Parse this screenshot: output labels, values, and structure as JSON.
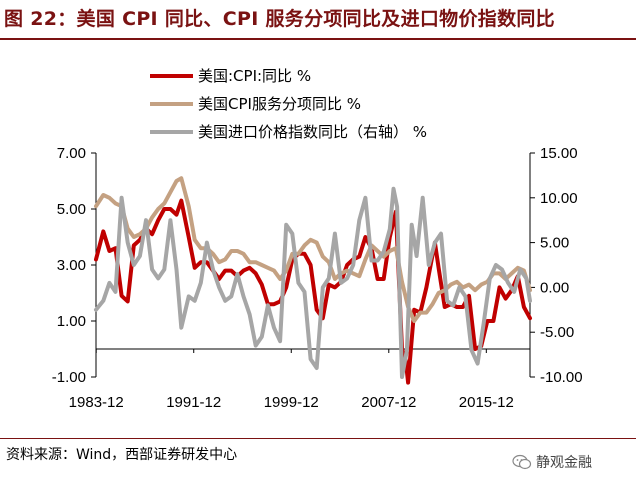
{
  "figure": {
    "title": "图 22：美国 CPI 同比、CPI 服务分项同比及进口物价指数同比",
    "source": "资料来源：Wind，西部证券研发中心",
    "watermark": "静观金融",
    "watermark_icon": "wechat-icon"
  },
  "chart_data": {
    "type": "line",
    "legend": [
      {
        "name": "美国:CPI:同比 %",
        "color": "#c00000"
      },
      {
        "name": "美国CPI服务分项同比 %",
        "color": "#c4a182"
      },
      {
        "name": "美国进口价格指数同比（右轴） %",
        "color": "#a6a6a6"
      }
    ],
    "x_ticks": [
      "1983-12",
      "1991-12",
      "1999-12",
      "2007-12",
      "2015-12"
    ],
    "y_left": {
      "min": -1,
      "max": 7,
      "ticks": [
        "7.00",
        "5.00",
        "3.00",
        "1.00",
        "-1.00"
      ]
    },
    "y_right": {
      "min": -10,
      "max": 15,
      "ticks": [
        "15.00",
        "10.00",
        "5.00",
        "0.00",
        "-5.00",
        "-10.00"
      ]
    },
    "x_range": [
      1983.9,
      2019.5
    ],
    "series": [
      {
        "name": "美国:CPI:同比 %",
        "axis": "left",
        "color": "#c00000",
        "x": [
          1983.9,
          1984.5,
          1985.0,
          1985.5,
          1986.0,
          1986.5,
          1987.0,
          1987.5,
          1988.0,
          1988.5,
          1989.0,
          1989.5,
          1990.0,
          1990.5,
          1990.9,
          1991.5,
          1992.0,
          1992.5,
          1993.0,
          1993.5,
          1994.0,
          1994.5,
          1995.0,
          1995.5,
          1996.0,
          1996.5,
          1997.0,
          1997.5,
          1998.0,
          1998.5,
          1999.0,
          1999.5,
          2000.0,
          2000.5,
          2001.0,
          2001.5,
          2002.0,
          2002.5,
          2003.0,
          2003.5,
          2004.0,
          2004.5,
          2005.0,
          2005.5,
          2006.0,
          2006.5,
          2007.0,
          2007.5,
          2008.0,
          2008.5,
          2009.0,
          2009.3,
          2009.5,
          2010.0,
          2010.5,
          2011.0,
          2011.7,
          2012.0,
          2012.5,
          2013.0,
          2013.5,
          2014.0,
          2014.5,
          2015.0,
          2015.5,
          2016.0,
          2016.5,
          2017.0,
          2017.5,
          2018.0,
          2018.5,
          2019.0,
          2019.5
        ],
        "values": [
          3.2,
          4.2,
          3.5,
          3.6,
          1.9,
          1.7,
          3.7,
          3.9,
          4.3,
          4.1,
          4.6,
          5.0,
          5.0,
          4.8,
          5.3,
          4.0,
          2.9,
          3.1,
          3.1,
          2.8,
          2.5,
          2.8,
          2.8,
          2.6,
          2.8,
          2.9,
          2.7,
          2.3,
          1.6,
          1.6,
          1.7,
          2.2,
          3.2,
          3.4,
          3.4,
          3.0,
          1.4,
          1.1,
          2.3,
          2.2,
          2.4,
          3.0,
          3.2,
          3.3,
          4.0,
          3.6,
          2.5,
          2.5,
          4.0,
          4.9,
          0.0,
          -0.4,
          -1.2,
          1.4,
          1.3,
          2.2,
          3.8,
          2.9,
          1.5,
          1.6,
          1.5,
          1.5,
          1.9,
          0.0,
          0.1,
          1.0,
          1.0,
          2.2,
          1.8,
          2.1,
          2.6,
          1.5,
          1.1
        ]
      },
      {
        "name": "美国CPI服务分项同比 %",
        "axis": "left",
        "color": "#c4a182",
        "x": [
          1983.9,
          1984.5,
          1985.0,
          1985.5,
          1986.0,
          1986.5,
          1987.0,
          1987.5,
          1988.0,
          1988.5,
          1989.0,
          1989.5,
          1990.0,
          1990.5,
          1990.9,
          1991.5,
          1992.0,
          1992.5,
          1993.0,
          1993.5,
          1994.0,
          1994.5,
          1995.0,
          1995.5,
          1996.0,
          1996.5,
          1997.0,
          1997.5,
          1998.0,
          1998.5,
          1999.0,
          1999.5,
          2000.0,
          2000.5,
          2001.0,
          2001.5,
          2002.0,
          2002.5,
          2003.0,
          2003.5,
          2004.0,
          2004.5,
          2005.0,
          2005.5,
          2006.0,
          2006.5,
          2007.0,
          2007.5,
          2008.0,
          2008.5,
          2009.0,
          2009.5,
          2010.0,
          2010.5,
          2011.0,
          2011.5,
          2012.0,
          2012.5,
          2013.0,
          2013.5,
          2014.0,
          2014.5,
          2015.0,
          2015.5,
          2016.0,
          2016.5,
          2017.0,
          2017.5,
          2018.0,
          2018.5,
          2019.0,
          2019.5
        ],
        "values": [
          5.1,
          5.5,
          5.4,
          5.2,
          5.1,
          4.3,
          4.0,
          4.1,
          4.3,
          4.7,
          5.0,
          5.2,
          5.6,
          6.0,
          6.1,
          5.1,
          3.9,
          3.6,
          3.6,
          3.4,
          3.1,
          3.2,
          3.5,
          3.5,
          3.4,
          3.1,
          3.1,
          3.0,
          2.9,
          2.8,
          2.5,
          2.8,
          3.4,
          3.4,
          3.7,
          3.9,
          3.8,
          3.3,
          3.1,
          2.5,
          2.7,
          2.8,
          2.7,
          2.6,
          3.2,
          3.7,
          3.5,
          3.3,
          3.5,
          3.6,
          2.4,
          1.5,
          1.0,
          1.3,
          1.3,
          1.6,
          2.0,
          2.1,
          2.3,
          2.4,
          2.2,
          2.3,
          2.1,
          2.3,
          2.4,
          2.7,
          2.7,
          2.5,
          2.7,
          2.9,
          2.8,
          2.1
        ]
      },
      {
        "name": "美国进口价格指数同比（右轴） %",
        "axis": "right",
        "color": "#a6a6a6",
        "x": [
          1983.9,
          1984.5,
          1985.0,
          1985.5,
          1986.0,
          1986.5,
          1987.0,
          1987.5,
          1988.0,
          1988.5,
          1989.0,
          1989.5,
          1990.0,
          1990.5,
          1990.9,
          1991.5,
          1992.0,
          1992.5,
          1993.0,
          1993.5,
          1994.0,
          1994.5,
          1995.0,
          1995.5,
          1996.0,
          1996.5,
          1997.0,
          1997.5,
          1998.0,
          1998.5,
          1999.0,
          1999.5,
          2000.0,
          2000.5,
          2001.0,
          2001.5,
          2002.0,
          2002.5,
          2003.0,
          2003.5,
          2004.0,
          2004.5,
          2005.0,
          2005.5,
          2006.0,
          2006.5,
          2007.0,
          2007.5,
          2008.0,
          2008.3,
          2008.6,
          2009.0,
          2009.4,
          2009.8,
          2010.2,
          2010.7,
          2011.2,
          2011.7,
          2012.2,
          2012.7,
          2013.2,
          2013.7,
          2014.2,
          2014.7,
          2015.2,
          2015.7,
          2016.2,
          2016.7,
          2017.2,
          2017.7,
          2018.2,
          2018.7,
          2019.2,
          2019.5
        ],
        "values": [
          -2.5,
          -1.5,
          0.5,
          -0.5,
          10.0,
          5.0,
          2.5,
          3.5,
          7.5,
          2.0,
          1.0,
          2.0,
          7.5,
          2.0,
          -4.5,
          -1.0,
          -1.5,
          0.5,
          5.0,
          2.0,
          0.0,
          -1.5,
          -1.0,
          1.5,
          -1.0,
          -3.0,
          -6.5,
          -5.5,
          -2.0,
          -4.5,
          -6.0,
          7.0,
          6.0,
          0.5,
          -0.5,
          -8.0,
          -9.0,
          0.0,
          1.0,
          6.0,
          0.5,
          1.0,
          2.5,
          7.5,
          10.0,
          3.0,
          3.0,
          4.0,
          6.5,
          11.0,
          9.0,
          -10.0,
          -7.0,
          7.0,
          3.5,
          10.0,
          2.5,
          5.0,
          6.0,
          -1.5,
          -2.0,
          0.0,
          -1.0,
          -7.0,
          -8.5,
          -4.0,
          1.0,
          2.5,
          2.0,
          0.5,
          -0.5,
          2.0,
          1.0,
          -1.5
        ]
      }
    ]
  }
}
